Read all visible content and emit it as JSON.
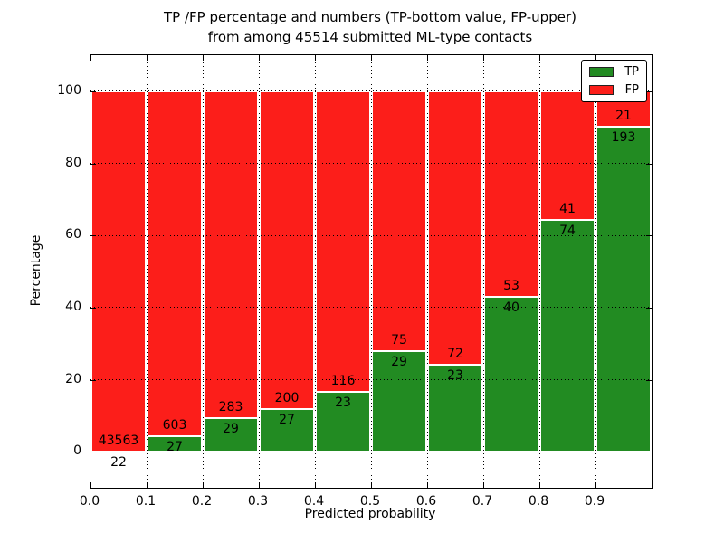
{
  "figure": {
    "title_line1": "TP /FP percentage and numbers (TP-bottom value, FP-upper)",
    "title_line2": "from among 45514 submitted ML-type contacts"
  },
  "chart_data": {
    "type": "bar",
    "stacked": true,
    "normalized": "each bin scaled to 100%",
    "title": "TP /FP percentage and numbers (TP-bottom value, FP-upper)\nfrom among 45514 submitted ML-type contacts",
    "xlabel": "Predicted probability",
    "ylabel": "Percentage",
    "xlim": [
      0.0,
      1.0
    ],
    "ylim": [
      -10,
      110
    ],
    "bin_width": 0.1,
    "x_tick_labels": [
      "0.0",
      "0.1",
      "0.2",
      "0.3",
      "0.4",
      "0.5",
      "0.6",
      "0.7",
      "0.8",
      "0.9"
    ],
    "y_tick_values": [
      0,
      20,
      40,
      60,
      80,
      100
    ],
    "y_tick_labels": [
      "0",
      "20",
      "40",
      "60",
      "80",
      "100"
    ],
    "grid": true,
    "total_contacts": 45514,
    "bins": [
      {
        "x_start": 0.0,
        "tp": 22,
        "fp": 43563
      },
      {
        "x_start": 0.1,
        "tp": 27,
        "fp": 603
      },
      {
        "x_start": 0.2,
        "tp": 29,
        "fp": 283
      },
      {
        "x_start": 0.3,
        "tp": 27,
        "fp": 200
      },
      {
        "x_start": 0.4,
        "tp": 23,
        "fp": 116
      },
      {
        "x_start": 0.5,
        "tp": 29,
        "fp": 75
      },
      {
        "x_start": 0.6,
        "tp": 23,
        "fp": 72
      },
      {
        "x_start": 0.7,
        "tp": 40,
        "fp": 53
      },
      {
        "x_start": 0.8,
        "tp": 74,
        "fp": 41
      },
      {
        "x_start": 0.9,
        "tp": 193,
        "fp": 21
      }
    ],
    "colors": {
      "tp": "#228b22",
      "fp": "#fc1e1a"
    },
    "legend": {
      "position": "upper right",
      "entries": [
        {
          "label": "TP",
          "color": "#228b22"
        },
        {
          "label": "FP",
          "color": "#fc1e1a"
        }
      ]
    }
  }
}
